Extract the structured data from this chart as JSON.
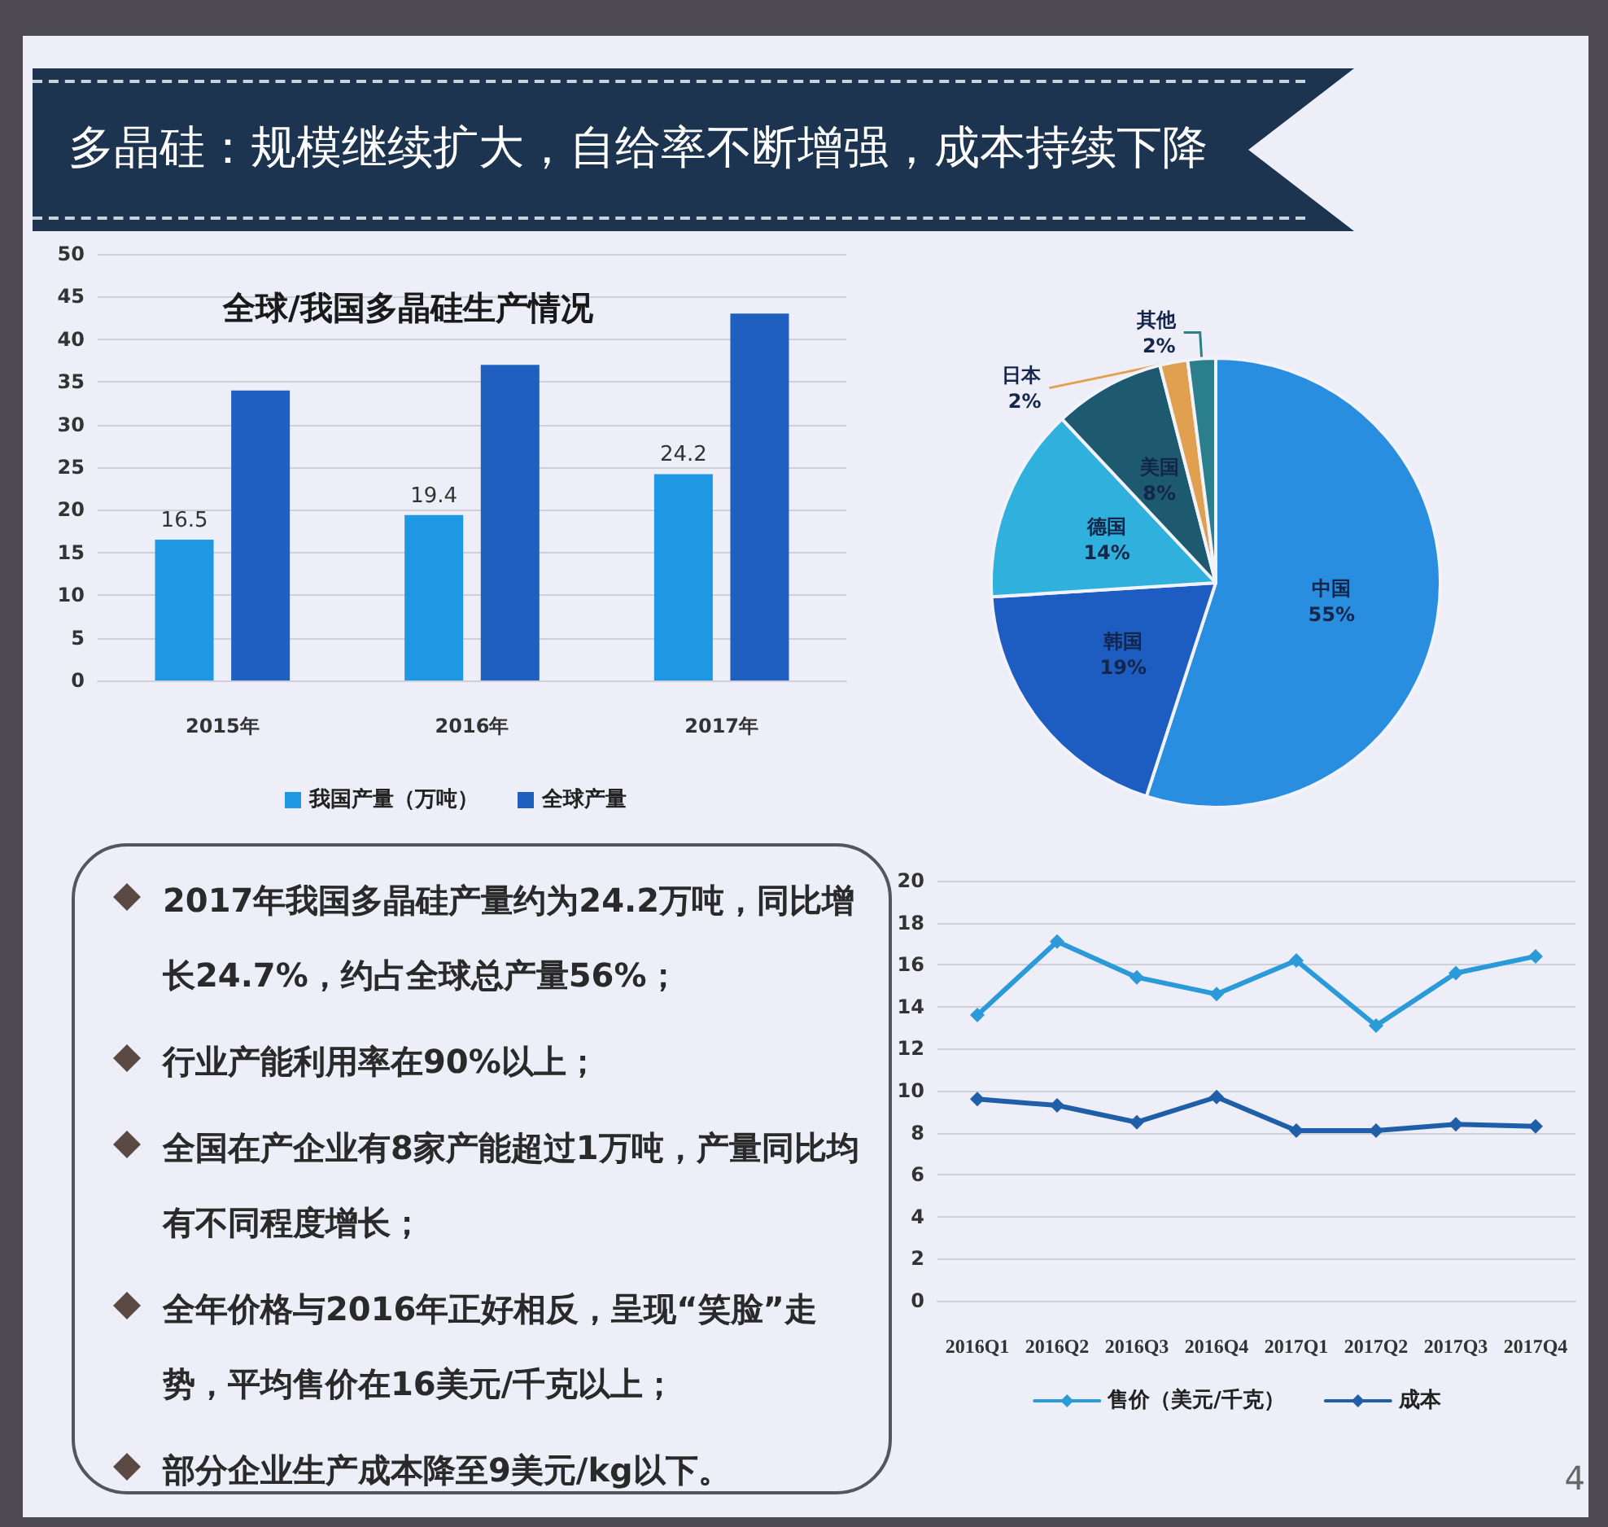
{
  "chart_data": [
    {
      "type": "other",
      "title": "多晶硅：规模继续扩大，自给率不断增强，成本持续下降",
      "annotations": [
        "4"
      ]
    },
    {
      "type": "bar",
      "title": "全球/我国多晶硅生产情况",
      "categories": [
        "2015年",
        "2016年",
        "2017年"
      ],
      "series": [
        {
          "name": "我国产量（万吨）",
          "color": "#1e98e2",
          "values": [
            16.5,
            19.4,
            24.2
          ],
          "value_labels": [
            "16.5",
            "19.4",
            "24.2"
          ]
        },
        {
          "name": "全球产量",
          "color": "#1f5fc0",
          "values": [
            34,
            37,
            43
          ]
        }
      ],
      "ylim": [
        0,
        50
      ],
      "yticks": [
        0,
        5,
        10,
        15,
        20,
        25,
        30,
        35,
        40,
        45,
        50
      ],
      "grid": "y",
      "legend": "bottom"
    },
    {
      "type": "pie",
      "categories": [
        "中国",
        "韩国",
        "德国",
        "美国",
        "日本",
        "其他"
      ],
      "values": [
        55,
        19,
        14,
        8,
        2,
        2
      ],
      "value_labels": [
        "55%",
        "19%",
        "14%",
        "8%",
        "2%",
        "2%"
      ],
      "colors": [
        "#2a8ee0",
        "#1d5cc0",
        "#30b0dc",
        "#1d5a70",
        "#e0a050",
        "#2b7f8c"
      ]
    },
    {
      "type": "other",
      "annotations": [
        "2017年我国多晶硅产量约为24.2万吨，同比增长24.7%，约占全球总产量56%；",
        "行业产能利用率在90%以上；",
        "全国在产企业有8家产能超过1万吨，产量同比均有不同程度增长；",
        "全年价格与2016年正好相反，呈现“笑脸”走势，平均售价在16美元/千克以上；",
        "部分企业生产成本降至9美元/kg以下。"
      ]
    },
    {
      "type": "line",
      "categories": [
        "2016Q1",
        "2016Q2",
        "2016Q3",
        "2016Q4",
        "2017Q1",
        "2017Q2",
        "2017Q3",
        "2017Q4"
      ],
      "series": [
        {
          "name": "售价（美元/千克）",
          "color": "#2a9ad8",
          "values": [
            13.6,
            17.1,
            15.4,
            14.6,
            16.2,
            13.1,
            15.6,
            16.4
          ]
        },
        {
          "name": "成本",
          "color": "#1f5fa8",
          "values": [
            9.6,
            9.3,
            8.5,
            9.7,
            8.1,
            8.1,
            8.4,
            8.3
          ]
        }
      ],
      "ylim": [
        0,
        20
      ],
      "yticks": [
        0,
        2,
        4,
        6,
        8,
        10,
        12,
        14,
        16,
        18,
        20
      ],
      "grid": "y",
      "legend": "bottom",
      "marker": "diamond",
      "line_style": "solid"
    }
  ]
}
